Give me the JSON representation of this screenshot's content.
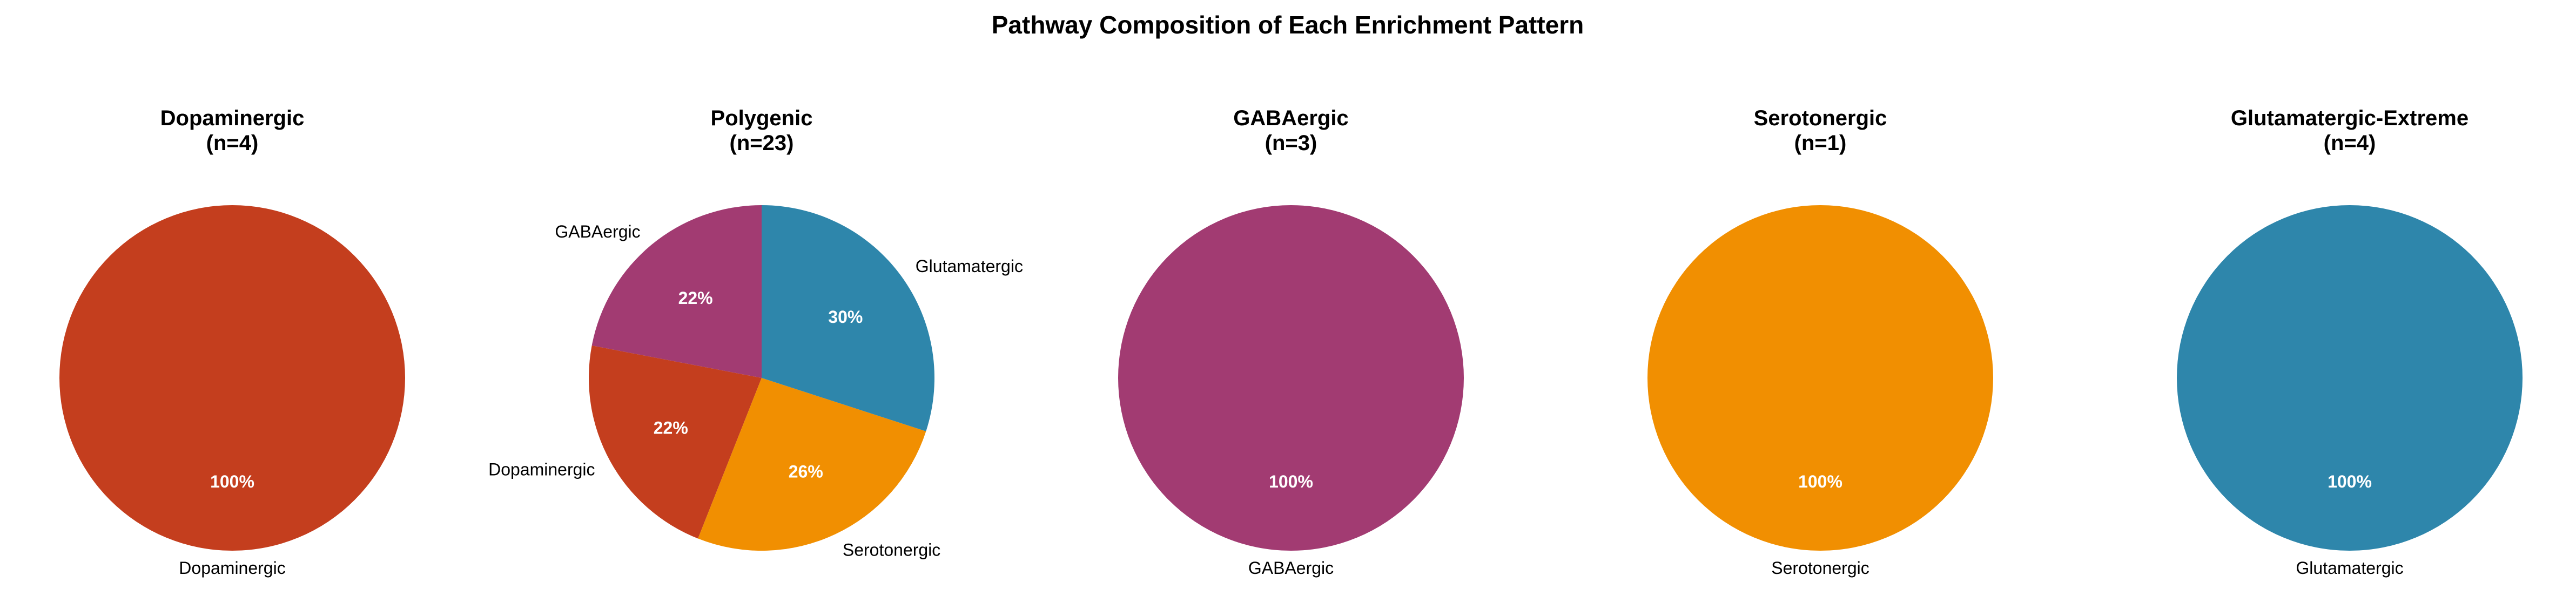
{
  "title": "Pathway Composition of Each Enrichment Pattern",
  "colors": {
    "Dopaminergic": "#C43E1E",
    "Glutamatergic": "#2E86AB",
    "GABAergic": "#A23B72",
    "Serotonergic": "#F18F01"
  },
  "chart_data": [
    {
      "type": "pie",
      "title": "Dopaminergic",
      "subtitle": "(n=4)",
      "slices": [
        {
          "label": "Dopaminergic",
          "value": 100,
          "pct_label": "100%"
        }
      ]
    },
    {
      "type": "pie",
      "title": "Polygenic",
      "subtitle": "(n=23)",
      "slices": [
        {
          "label": "GABAergic",
          "value": 22,
          "pct_label": "22%"
        },
        {
          "label": "Dopaminergic",
          "value": 22,
          "pct_label": "22%"
        },
        {
          "label": "Serotonergic",
          "value": 26,
          "pct_label": "26%"
        },
        {
          "label": "Glutamatergic",
          "value": 30,
          "pct_label": "30%"
        }
      ]
    },
    {
      "type": "pie",
      "title": "GABAergic",
      "subtitle": "(n=3)",
      "slices": [
        {
          "label": "GABAergic",
          "value": 100,
          "pct_label": "100%"
        }
      ]
    },
    {
      "type": "pie",
      "title": "Serotonergic",
      "subtitle": "(n=1)",
      "slices": [
        {
          "label": "Serotonergic",
          "value": 100,
          "pct_label": "100%"
        }
      ]
    },
    {
      "type": "pie",
      "title": "Glutamatergic-Extreme",
      "subtitle": "(n=4)",
      "slices": [
        {
          "label": "Glutamatergic",
          "value": 100,
          "pct_label": "100%"
        }
      ]
    }
  ]
}
